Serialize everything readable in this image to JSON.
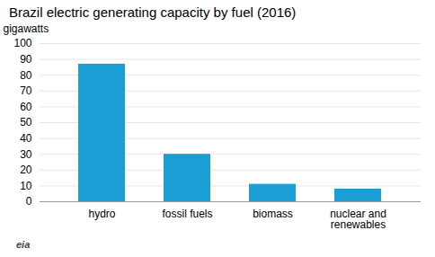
{
  "chart_data": {
    "type": "bar",
    "title": "Brazil electric generating capacity by fuel (2016)",
    "ylabel": "gigawatts",
    "categories": [
      "hydro",
      "fossil fuels",
      "biomass",
      "nuclear and\nrenewables"
    ],
    "values": [
      87,
      30,
      11,
      8
    ],
    "color": "#1a9ed4",
    "ylim": [
      0,
      100
    ],
    "yticks": [
      0,
      10,
      20,
      30,
      40,
      50,
      60,
      70,
      80,
      90,
      100
    ],
    "grid": true,
    "annotations": [
      "eia"
    ]
  }
}
